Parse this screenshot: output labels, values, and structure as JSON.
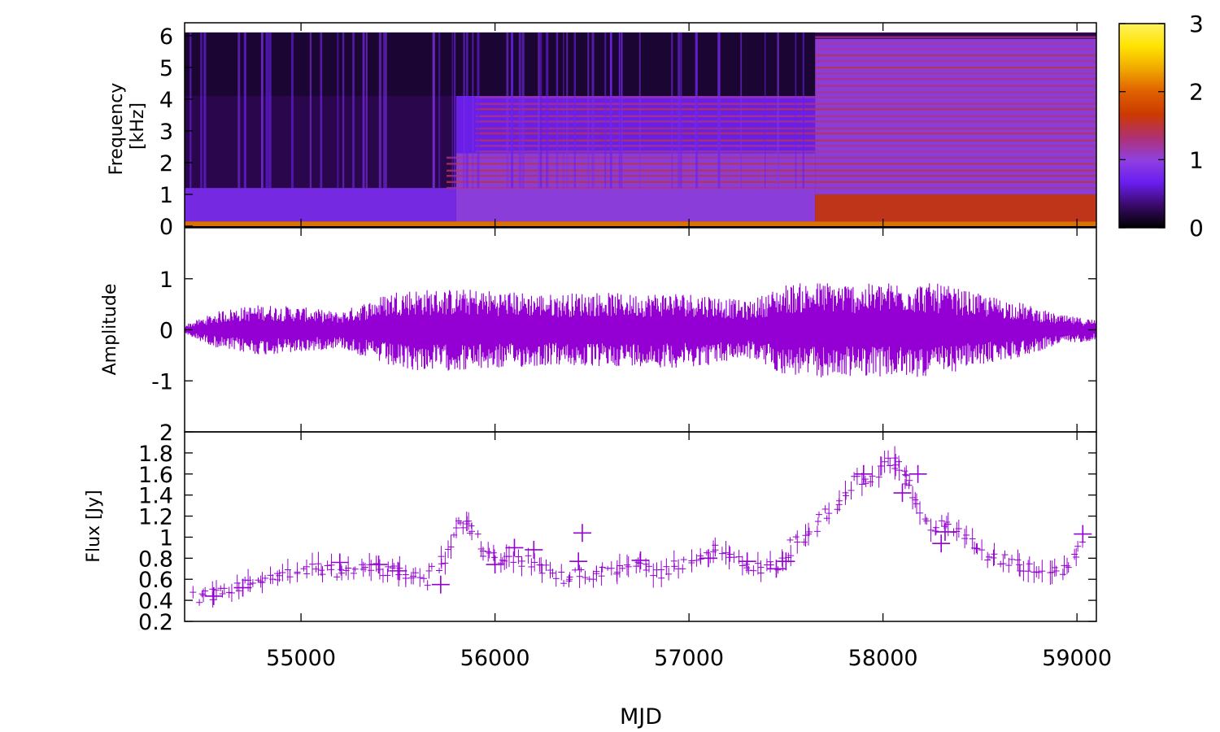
{
  "x_axis": {
    "label": "MJD",
    "min": 54400,
    "max": 59100,
    "ticks": [
      "55000",
      "56000",
      "57000",
      "58000",
      "59000"
    ]
  },
  "colorbar": {
    "min": 0,
    "max": 3,
    "ticks": [
      "0",
      "1",
      "2",
      "3"
    ],
    "colors": [
      "#000000",
      "#3a0a6a",
      "#6a1ef0",
      "#9040e0",
      "#b03070",
      "#cc3a00",
      "#e06000",
      "#f0a800",
      "#ffe400",
      "#fff060"
    ]
  },
  "chart_data": [
    {
      "type": "heatmap",
      "title": "",
      "xlabel": "",
      "ylabel": "Frequency [kHz]",
      "ylim": [
        0,
        6.2
      ],
      "yticks": [
        "0",
        "1",
        "2",
        "3",
        "4",
        "5",
        "6"
      ],
      "zlim": [
        0,
        3
      ],
      "description_of_regions": [
        {
          "x": [
            54400,
            59100
          ],
          "y_kHz": [
            0,
            0.15
          ],
          "value": 2.1
        },
        {
          "x": [
            54400,
            55800
          ],
          "y_kHz": [
            0.15,
            1.2
          ],
          "value": 0.8
        },
        {
          "x": [
            55800,
            57650
          ],
          "y_kHz": [
            0.15,
            2.3
          ],
          "value": 1.0
        },
        {
          "x": [
            55800,
            57650
          ],
          "y_kHz": [
            2.3,
            4.1
          ],
          "value": 0.7
        },
        {
          "x": [
            57650,
            59100
          ],
          "y_kHz": [
            0.15,
            1.0
          ],
          "value": 1.6
        },
        {
          "x": [
            57650,
            59100
          ],
          "y_kHz": [
            1.0,
            5.9
          ],
          "value": 1.0
        },
        {
          "x": [
            54400,
            57650
          ],
          "y_kHz": [
            4.1,
            6.1
          ],
          "value": 0.15
        }
      ]
    },
    {
      "type": "line",
      "title": "",
      "xlabel": "",
      "ylabel": "Amplitude",
      "ylim": [
        -2,
        2
      ],
      "yticks": [
        "-1",
        "0",
        "1"
      ],
      "color": "#9400d3",
      "envelope": {
        "x": [
          54400,
          54600,
          54800,
          55000,
          55200,
          55400,
          55500,
          55700,
          55900,
          56100,
          56300,
          56500,
          56700,
          56900,
          57100,
          57300,
          57500,
          57700,
          57900,
          58100,
          58300,
          58500,
          58700,
          58900,
          59100
        ],
        "amplitude": [
          0.1,
          0.4,
          0.5,
          0.45,
          0.35,
          0.65,
          0.8,
          0.8,
          0.8,
          0.75,
          0.7,
          0.75,
          0.7,
          0.75,
          0.7,
          0.55,
          0.9,
          0.95,
          0.9,
          0.95,
          0.9,
          0.7,
          0.55,
          0.3,
          0.2
        ]
      }
    },
    {
      "type": "scatter",
      "title": "",
      "xlabel": "MJD",
      "ylabel": "Flux [Jy]",
      "ylim": [
        0.2,
        2.0
      ],
      "yticks": [
        "0.2",
        "0.4",
        "0.6",
        "0.8",
        "1",
        "1.2",
        "1.4",
        "1.6",
        "1.8",
        "2"
      ],
      "color": "#9400d3",
      "series": [
        {
          "x": [
            54450,
            54550,
            54650,
            54750,
            54850,
            54950,
            55050,
            55150,
            55250,
            55350,
            55450,
            55550,
            55650,
            55750,
            55820,
            55880,
            55950,
            56050,
            56150,
            56250,
            56350,
            56450,
            56550,
            56650,
            56750,
            56850,
            56950,
            57050,
            57150,
            57250,
            57350,
            57450,
            57550,
            57650,
            57750,
            57850,
            57950,
            58050,
            58100,
            58150,
            58250,
            58350,
            58450,
            58550,
            58650,
            58750,
            58850,
            58950,
            59050
          ],
          "y": [
            0.42,
            0.45,
            0.52,
            0.57,
            0.6,
            0.64,
            0.7,
            0.68,
            0.66,
            0.72,
            0.68,
            0.66,
            0.6,
            0.8,
            1.15,
            1.05,
            0.82,
            0.77,
            0.78,
            0.7,
            0.62,
            0.64,
            0.68,
            0.72,
            0.7,
            0.66,
            0.74,
            0.82,
            0.88,
            0.76,
            0.7,
            0.72,
            0.96,
            1.1,
            1.3,
            1.52,
            1.58,
            1.72,
            1.65,
            1.42,
            1.12,
            1.1,
            0.95,
            0.8,
            0.76,
            0.7,
            0.66,
            0.72,
            0.95
          ]
        },
        {
          "x": [
            54550,
            54700,
            55200,
            55400,
            55500,
            55720,
            56000,
            56100,
            56200,
            56430,
            56450,
            56750,
            57100,
            57300,
            57450,
            57500,
            57900,
            58100,
            58180,
            58300,
            58320,
            59030
          ],
          "y": [
            0.44,
            0.52,
            0.76,
            0.74,
            0.68,
            0.55,
            0.74,
            0.9,
            0.88,
            0.77,
            1.04,
            0.78,
            0.8,
            0.77,
            0.7,
            0.77,
            1.6,
            1.42,
            1.6,
            0.94,
            1.05,
            1.03
          ]
        }
      ]
    }
  ]
}
